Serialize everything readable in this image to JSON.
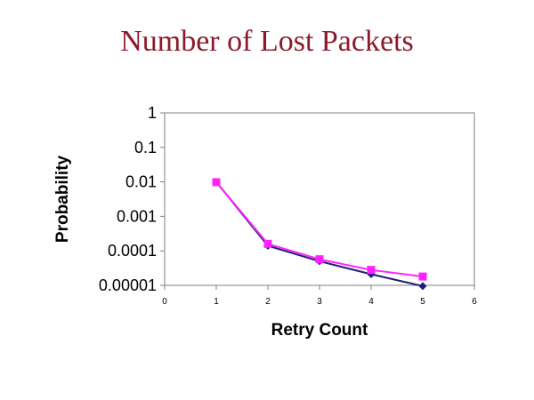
{
  "chart_data": {
    "type": "line",
    "title": "Number of Lost Packets",
    "xlabel": "Retry Count",
    "ylabel": "Probability",
    "xlim": [
      0,
      6
    ],
    "ylim": [
      1e-05,
      1
    ],
    "y_scale": "log",
    "x_ticks": [
      "0",
      "1",
      "2",
      "3",
      "4",
      "5",
      "6"
    ],
    "y_ticks": [
      "1",
      "0.1",
      "0.01",
      "0.001",
      "0.0001",
      "0.00001"
    ],
    "grid": false,
    "series": [
      {
        "color": "#1f1f7a",
        "marker": "diamond",
        "x": [
          1,
          2,
          3,
          4,
          5
        ],
        "y": [
          0.01,
          0.00014,
          5e-05,
          2.1e-05,
          9.5e-06
        ]
      },
      {
        "color": "#ff22ff",
        "marker": "square",
        "x": [
          1,
          2,
          3,
          4,
          5
        ],
        "y": [
          0.0098,
          0.00016,
          5.7e-05,
          2.8e-05,
          1.8e-05
        ]
      }
    ]
  }
}
